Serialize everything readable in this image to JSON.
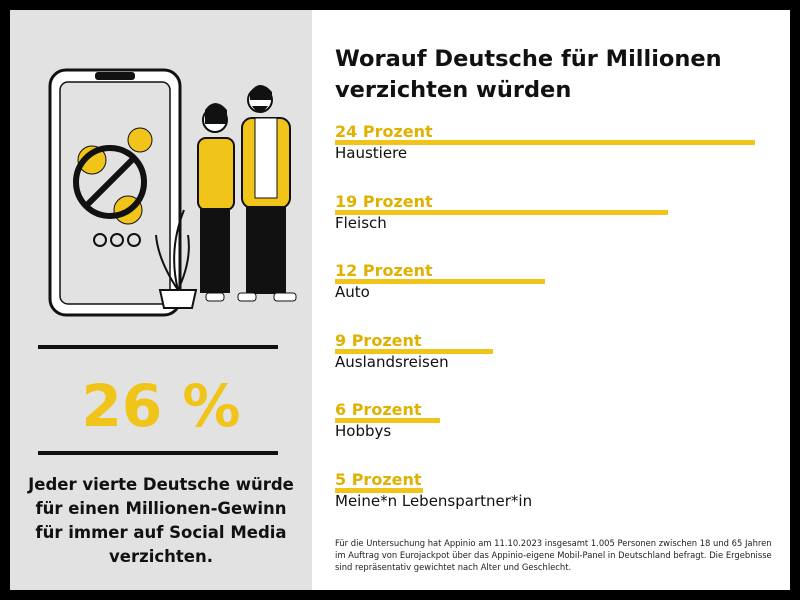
{
  "chart_data": {
    "type": "bar",
    "title": "Worauf Deutsche für Millionen verzichten würden",
    "categories": [
      "Haustiere",
      "Fleisch",
      "Auto",
      "Auslandsreisen",
      "Hobbys",
      "Meine*n Lebenspartner*in"
    ],
    "values": [
      24,
      19,
      12,
      9,
      6,
      5
    ],
    "value_labels": [
      "24 Prozent",
      "19 Prozent",
      "12 Prozent",
      "9 Prozent",
      "6 Prozent",
      "5 Prozent"
    ],
    "color": "#f0c419",
    "note": "Für die Untersuchung hat Appinio am 11.10.2023 insgesamt 1.005 Personen zwischen 18 und 65 Jahren im Auftrag von Eurojackpot über das Appinio-eigene Mobil-Panel in Deutschland befragt. Die Ergebnisse sind repräsentativ gewichtet nach Alter und Geschlecht."
  },
  "sidebar": {
    "stat": "26 %",
    "text": "Jeder vierte Deutsche würde für einen Millionen-Gewinn für immer auf Social Media verzichten."
  }
}
